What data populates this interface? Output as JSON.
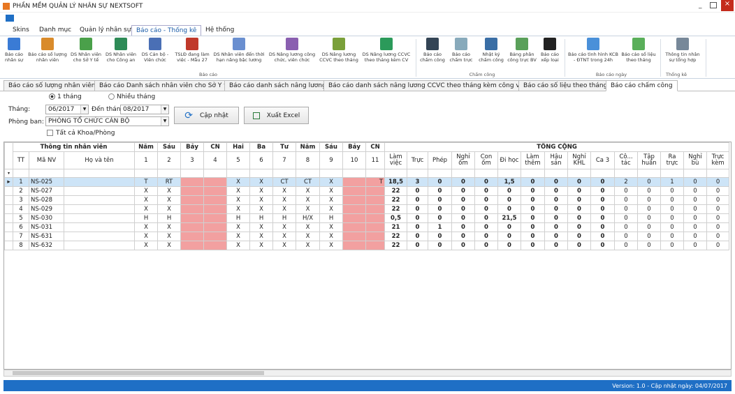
{
  "window": {
    "title": "PHẦN MỀM QUẢN LÝ NHÂN SỰ NEXTSOFT"
  },
  "menu": [
    "Skins",
    "Danh mục",
    "Quản lý nhân sự",
    "Báo cáo - Thống kê",
    "Hệ thống"
  ],
  "ribbon": {
    "groups": [
      {
        "label": "Báo cáo",
        "buttons": [
          "Báo cáo nhân sự",
          "Báo cáo số lượng nhân viên",
          "DS Nhân viên cho Sở Y tế",
          "DS Nhân viên cho Công an",
          "DS Cán bộ - Viên chức",
          "TSLĐ đang làm việc - Mẫu 27",
          "DS Nhân viên đến thời hạn nâng bậc lương",
          "DS Nâng lương công chức, viên chức",
          "DS Nâng lương CCVC theo tháng",
          "DS Nâng lương CCVC theo tháng kèm CV"
        ]
      },
      {
        "label": "Chấm công",
        "buttons": [
          "Báo cáo chấm công",
          "Báo cáo chấm trực",
          "Nhật ký chấm công",
          "Bảng phân công trực BV",
          "Báo cáo xếp loại"
        ]
      },
      {
        "label": "Báo cáo ngày",
        "buttons": [
          "Báo cáo tình hình KCB - ĐTNT trong 24h",
          "Báo cáo số liệu theo tháng"
        ]
      },
      {
        "label": "Thống kê",
        "buttons": [
          "Thông tin nhân sự tổng hợp"
        ]
      }
    ]
  },
  "doc_tabs": [
    "Báo cáo số lượng nhân viên",
    "Báo cáo Danh sách nhân viên cho Sở Y tế",
    "Báo cáo danh sách nâng lương",
    "Báo cáo danh sách nâng lương CCVC theo tháng kèm công văn",
    "Báo cáo số liệu theo tháng",
    "Báo cáo chấm công"
  ],
  "form": {
    "radio_one": "1 tháng",
    "radio_many": "Nhiều tháng",
    "month_label": "Tháng:",
    "month": "06/2017",
    "to_label": "Đến tháng:",
    "to_month": "08/2017",
    "update": "Cập nhật",
    "export": "Xuất Excel",
    "dept_label": "Phòng ban:",
    "dept": "PHÒNG TỔ CHỨC CÁN BỘ",
    "all_depts": "Tất cả Khoa/Phòng"
  },
  "grid": {
    "info_header": "Thông tin nhân viên",
    "total_header": "TỔNG CỘNG",
    "info_columns": [
      "TT",
      "Mã NV",
      "Họ và tên"
    ],
    "days": [
      {
        "name": "Năm",
        "date": 1
      },
      {
        "name": "Sáu",
        "date": 2
      },
      {
        "name": "Bảy",
        "date": 3
      },
      {
        "name": "CN",
        "date": 4
      },
      {
        "name": "Hai",
        "date": 5
      },
      {
        "name": "Ba",
        "date": 6
      },
      {
        "name": "Tư",
        "date": 7
      },
      {
        "name": "Năm",
        "date": 8
      },
      {
        "name": "Sáu",
        "date": 9
      },
      {
        "name": "Bảy",
        "date": 10
      },
      {
        "name": "CN",
        "date": 11
      }
    ],
    "totals": [
      "Làm việc",
      "Trực",
      "Phép",
      "Nghỉ ốm",
      "Con ốm",
      "Đi học",
      "Làm thêm",
      "Hậu sản",
      "Nghỉ KHL",
      "Ca 3",
      "Cô... tác",
      "Tập huấn",
      "Ra trực",
      "Nghỉ bù",
      "Trực kèm"
    ],
    "rows": [
      {
        "tt": 1,
        "id": "NS-025",
        "days": [
          "T",
          "RT",
          null,
          null,
          "X",
          "X",
          "CT",
          "CT",
          "X",
          null,
          "T"
        ],
        "totals": [
          "18,5",
          "3",
          "0",
          "0",
          "0",
          "1,5",
          "0",
          "0",
          "0",
          "0",
          "2",
          "0",
          "1",
          "0",
          "0"
        ]
      },
      {
        "tt": 2,
        "id": "NS-027",
        "days": [
          "X",
          "X",
          null,
          null,
          "X",
          "X",
          "X",
          "X",
          "X",
          null,
          null
        ],
        "totals": [
          "22",
          "0",
          "0",
          "0",
          "0",
          "0",
          "0",
          "0",
          "0",
          "0",
          "0",
          "0",
          "0",
          "0",
          "0"
        ]
      },
      {
        "tt": 3,
        "id": "NS-028",
        "days": [
          "X",
          "X",
          null,
          null,
          "X",
          "X",
          "X",
          "X",
          "X",
          null,
          null
        ],
        "totals": [
          "22",
          "0",
          "0",
          "0",
          "0",
          "0",
          "0",
          "0",
          "0",
          "0",
          "0",
          "0",
          "0",
          "0",
          "0"
        ]
      },
      {
        "tt": 4,
        "id": "NS-029",
        "days": [
          "X",
          "X",
          null,
          null,
          "X",
          "X",
          "X",
          "X",
          "X",
          null,
          null
        ],
        "totals": [
          "22",
          "0",
          "0",
          "0",
          "0",
          "0",
          "0",
          "0",
          "0",
          "0",
          "0",
          "0",
          "0",
          "0",
          "0"
        ]
      },
      {
        "tt": 5,
        "id": "NS-030",
        "days": [
          "H",
          "H",
          null,
          null,
          "H",
          "H",
          "H",
          "H/X",
          "H",
          null,
          null
        ],
        "totals": [
          "0,5",
          "0",
          "0",
          "0",
          "0",
          "21,5",
          "0",
          "0",
          "0",
          "0",
          "0",
          "0",
          "0",
          "0",
          "0"
        ]
      },
      {
        "tt": 6,
        "id": "NS-031",
        "days": [
          "X",
          "X",
          null,
          null,
          "X",
          "X",
          "X",
          "X",
          "X",
          null,
          null
        ],
        "totals": [
          "21",
          "0",
          "1",
          "0",
          "0",
          "0",
          "0",
          "0",
          "0",
          "0",
          "0",
          "0",
          "0",
          "0",
          "0"
        ]
      },
      {
        "tt": 7,
        "id": "NS-631",
        "days": [
          "X",
          "X",
          null,
          null,
          "X",
          "X",
          "X",
          "X",
          "X",
          null,
          null
        ],
        "totals": [
          "22",
          "0",
          "0",
          "0",
          "0",
          "0",
          "0",
          "0",
          "0",
          "0",
          "0",
          "0",
          "0",
          "0",
          "0"
        ]
      },
      {
        "tt": 8,
        "id": "NS-632",
        "days": [
          "X",
          "X",
          null,
          null,
          "X",
          "X",
          "X",
          "X",
          "X",
          null,
          null
        ],
        "totals": [
          "22",
          "0",
          "0",
          "0",
          "0",
          "0",
          "0",
          "0",
          "0",
          "0",
          "0",
          "0",
          "0",
          "0",
          "0"
        ]
      }
    ]
  },
  "status": "Version: 1.0 - Cập nhật ngày: 04/07/2017"
}
